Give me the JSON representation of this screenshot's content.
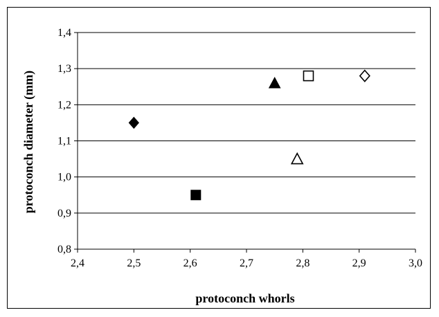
{
  "chart_data": {
    "type": "scatter",
    "title": "",
    "xlabel": "protoconch whorls",
    "ylabel": "protoconch diameter (mm)",
    "xlim": [
      2.4,
      3.0
    ],
    "ylim": [
      0.8,
      1.4
    ],
    "x_ticks": [
      "2,4",
      "2,5",
      "2,6",
      "2,7",
      "2,8",
      "2,9",
      "3,0"
    ],
    "y_ticks": [
      "0,8",
      "0,9",
      "1,0",
      "1,1",
      "1,2",
      "1,3",
      "1,4"
    ],
    "grid": "horizontal",
    "legend": "none",
    "points": [
      {
        "x": 2.5,
        "y": 1.15,
        "marker": "diamond-filled"
      },
      {
        "x": 2.61,
        "y": 0.95,
        "marker": "square-filled"
      },
      {
        "x": 2.75,
        "y": 1.26,
        "marker": "triangle-filled"
      },
      {
        "x": 2.79,
        "y": 1.05,
        "marker": "triangle-open"
      },
      {
        "x": 2.81,
        "y": 1.28,
        "marker": "square-open"
      },
      {
        "x": 2.91,
        "y": 1.28,
        "marker": "diamond-open"
      }
    ]
  }
}
